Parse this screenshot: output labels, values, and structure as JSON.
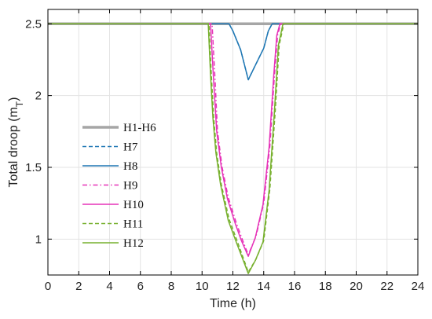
{
  "chart_data": {
    "type": "line",
    "xlabel": "Time (h)",
    "ylabel_main": "Total droop (m",
    "ylabel_sub": "T",
    "ylabel_close": ")",
    "xlim": [
      0,
      24
    ],
    "ylim": [
      0.75,
      2.6
    ],
    "xticks": [
      0,
      2,
      4,
      6,
      8,
      10,
      12,
      14,
      16,
      18,
      20,
      22,
      24
    ],
    "yticks": [
      1,
      1.5,
      2,
      2.5
    ],
    "ytick_labels": [
      "1",
      "1.5",
      "2",
      "2.5"
    ],
    "grid": true,
    "legend_position": "left",
    "series": [
      {
        "name": "H1-H6",
        "color": "#a6a6a6",
        "dash": "solid",
        "width": 3.5,
        "points": [
          [
            0,
            2.5
          ],
          [
            24,
            2.5
          ]
        ]
      },
      {
        "name": "H7",
        "color": "#1f77b4",
        "dash": "dashed",
        "width": 1.5,
        "points": [
          [
            0,
            2.5
          ],
          [
            11.75,
            2.5
          ],
          [
            12.0,
            2.45
          ],
          [
            12.5,
            2.32
          ],
          [
            13.0,
            2.11
          ],
          [
            13.5,
            2.22
          ],
          [
            14.0,
            2.33
          ],
          [
            14.3,
            2.45
          ],
          [
            14.55,
            2.5
          ],
          [
            24,
            2.5
          ]
        ]
      },
      {
        "name": "H8",
        "color": "#1f77b4",
        "dash": "solid",
        "width": 1.5,
        "points": [
          [
            0,
            2.5
          ],
          [
            11.75,
            2.5
          ],
          [
            12.0,
            2.45
          ],
          [
            12.5,
            2.32
          ],
          [
            13.0,
            2.11
          ],
          [
            13.5,
            2.22
          ],
          [
            14.0,
            2.33
          ],
          [
            14.3,
            2.45
          ],
          [
            14.55,
            2.5
          ],
          [
            24,
            2.5
          ]
        ]
      },
      {
        "name": "H9",
        "color": "#e633b8",
        "dash": "dashdot",
        "width": 1.5,
        "points": [
          [
            0,
            2.5
          ],
          [
            10.65,
            2.5
          ],
          [
            10.85,
            2.1
          ],
          [
            11.0,
            1.75
          ],
          [
            11.3,
            1.5
          ],
          [
            11.7,
            1.29
          ],
          [
            12.2,
            1.12
          ],
          [
            12.6,
            1.0
          ],
          [
            13.0,
            0.89
          ],
          [
            13.5,
            1.02
          ],
          [
            14.0,
            1.25
          ],
          [
            14.4,
            1.65
          ],
          [
            14.7,
            2.15
          ],
          [
            14.9,
            2.42
          ],
          [
            15.1,
            2.5
          ],
          [
            24,
            2.5
          ]
        ]
      },
      {
        "name": "H10",
        "color": "#e633b8",
        "dash": "solid",
        "width": 1.5,
        "points": [
          [
            0,
            2.5
          ],
          [
            10.55,
            2.5
          ],
          [
            10.75,
            2.1
          ],
          [
            10.95,
            1.75
          ],
          [
            11.25,
            1.5
          ],
          [
            11.65,
            1.28
          ],
          [
            12.15,
            1.11
          ],
          [
            12.55,
            0.99
          ],
          [
            13.0,
            0.88
          ],
          [
            13.45,
            1.01
          ],
          [
            13.95,
            1.24
          ],
          [
            14.35,
            1.64
          ],
          [
            14.65,
            2.14
          ],
          [
            14.85,
            2.42
          ],
          [
            15.05,
            2.5
          ],
          [
            24,
            2.5
          ]
        ]
      },
      {
        "name": "H11",
        "color": "#77b02e",
        "dash": "dashed",
        "width": 1.5,
        "points": [
          [
            0,
            2.5
          ],
          [
            10.45,
            2.5
          ],
          [
            10.6,
            2.15
          ],
          [
            10.75,
            1.85
          ],
          [
            10.95,
            1.6
          ],
          [
            11.25,
            1.38
          ],
          [
            11.75,
            1.14
          ],
          [
            12.3,
            0.98
          ],
          [
            13.0,
            0.77
          ],
          [
            13.5,
            0.86
          ],
          [
            14.0,
            0.99
          ],
          [
            14.4,
            1.35
          ],
          [
            14.75,
            1.9
          ],
          [
            15.0,
            2.35
          ],
          [
            15.3,
            2.5
          ],
          [
            24,
            2.5
          ]
        ]
      },
      {
        "name": "H12",
        "color": "#77b02e",
        "dash": "solid",
        "width": 1.5,
        "points": [
          [
            0,
            2.5
          ],
          [
            10.4,
            2.5
          ],
          [
            10.55,
            2.15
          ],
          [
            10.7,
            1.85
          ],
          [
            10.9,
            1.6
          ],
          [
            11.2,
            1.38
          ],
          [
            11.7,
            1.13
          ],
          [
            12.25,
            0.97
          ],
          [
            13.0,
            0.76
          ],
          [
            13.45,
            0.85
          ],
          [
            13.95,
            0.98
          ],
          [
            14.35,
            1.34
          ],
          [
            14.7,
            1.9
          ],
          [
            14.95,
            2.35
          ],
          [
            15.25,
            2.5
          ],
          [
            24,
            2.5
          ]
        ]
      }
    ]
  }
}
